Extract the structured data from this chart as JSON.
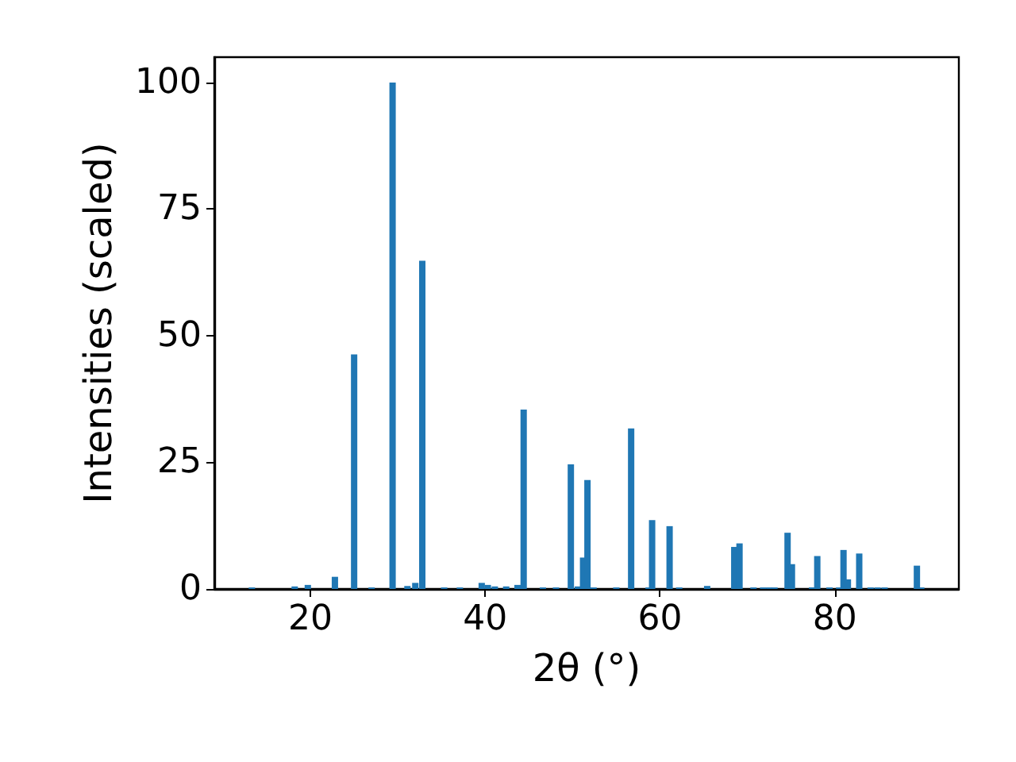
{
  "chart_data": {
    "type": "bar",
    "xlabel": "2θ (°)",
    "ylabel": "Intensities (scaled)",
    "color": "#1f77b4",
    "x": [
      13.3,
      18.2,
      19.7,
      22.8,
      25.0,
      27.0,
      29.4,
      31.1,
      32.0,
      32.8,
      35.3,
      37.1,
      39.6,
      40.3,
      41.1,
      42.4,
      43.7,
      44.4,
      46.6,
      48.1,
      49.8,
      50.6,
      51.2,
      51.7,
      52.4,
      55.0,
      56.7,
      58.7,
      59.1,
      61.1,
      62.2,
      65.4,
      68.5,
      69.1,
      70.7,
      71.8,
      72.5,
      73.1,
      74.6,
      75.1,
      77.4,
      78.0,
      79.4,
      80.5,
      81.0,
      81.5,
      82.8,
      84.1,
      84.9,
      85.7,
      89.4,
      89.9
    ],
    "values": [
      0.3,
      0.5,
      0.8,
      2.4,
      46.3,
      0.3,
      100,
      0.6,
      1.2,
      64.8,
      0.3,
      0.3,
      1.2,
      0.8,
      0.5,
      0.5,
      0.8,
      35.4,
      0.3,
      0.3,
      24.6,
      0.5,
      6.2,
      21.5,
      0.3,
      0.3,
      31.7,
      0.3,
      13.6,
      12.4,
      0.3,
      0.6,
      8.3,
      9.0,
      0.3,
      0.3,
      0.3,
      0.3,
      11.1,
      4.9,
      0.3,
      6.5,
      0.3,
      0.3,
      7.7,
      1.9,
      7.0,
      0.3,
      0.3,
      0.3,
      4.6,
      0.3
    ],
    "xlim": [
      9.0,
      94.2
    ],
    "xticks": [
      20,
      40,
      60,
      80
    ],
    "ylim": [
      0,
      105
    ],
    "yticks": [
      0,
      25,
      50,
      75,
      100
    ],
    "grid": false
  }
}
